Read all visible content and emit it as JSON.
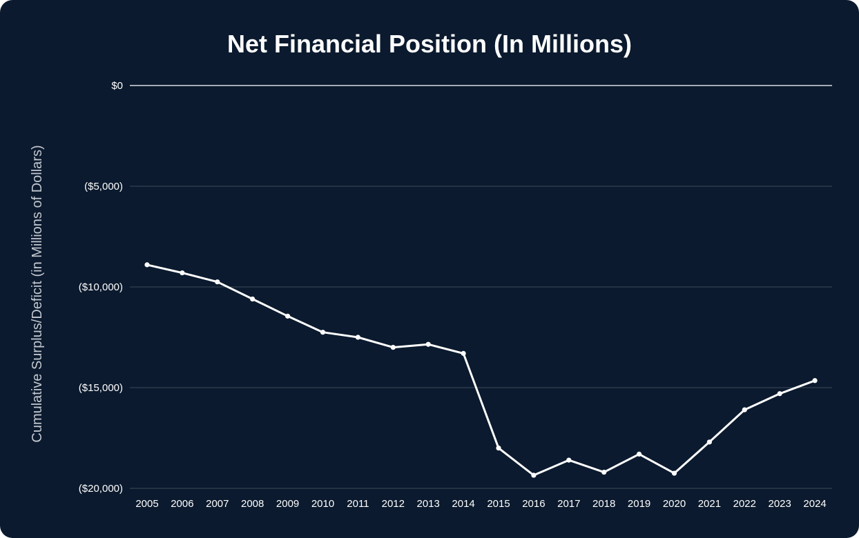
{
  "chart_data": {
    "type": "line",
    "title": "Net Financial Position (In Millions)",
    "ylabel": "Cumulative Surplus/Deficit (in Millions of Dollars)",
    "xlabel": "",
    "x": [
      "2005",
      "2006",
      "2007",
      "2008",
      "2009",
      "2010",
      "2011",
      "2012",
      "2013",
      "2014",
      "2015",
      "2016",
      "2017",
      "2018",
      "2019",
      "2020",
      "2021",
      "2022",
      "2023",
      "2024"
    ],
    "series": [
      {
        "values": [
          -8900,
          -9300,
          -9750,
          -10600,
          -11450,
          -12250,
          -12500,
          -13000,
          -12850,
          -13300,
          -18000,
          -19350,
          -18600,
          -19200,
          -18300,
          -19250,
          -17700,
          -16100,
          -15300,
          -14650
        ]
      }
    ],
    "ylim": [
      -20000,
      0
    ],
    "yticks": [
      0,
      -5000,
      -10000,
      -15000,
      -20000
    ],
    "ytick_labels": [
      "$0",
      "($5,000)",
      "($10,000)",
      "($15,000)",
      "($20,000)"
    ],
    "grid": true,
    "legend": "none",
    "colors": {
      "background": "#0b1a2e",
      "line": "#ffffff",
      "grid": "#3c4a5c",
      "zero_line": "#d8dde3",
      "axis_title": "#c4c9d1"
    }
  }
}
